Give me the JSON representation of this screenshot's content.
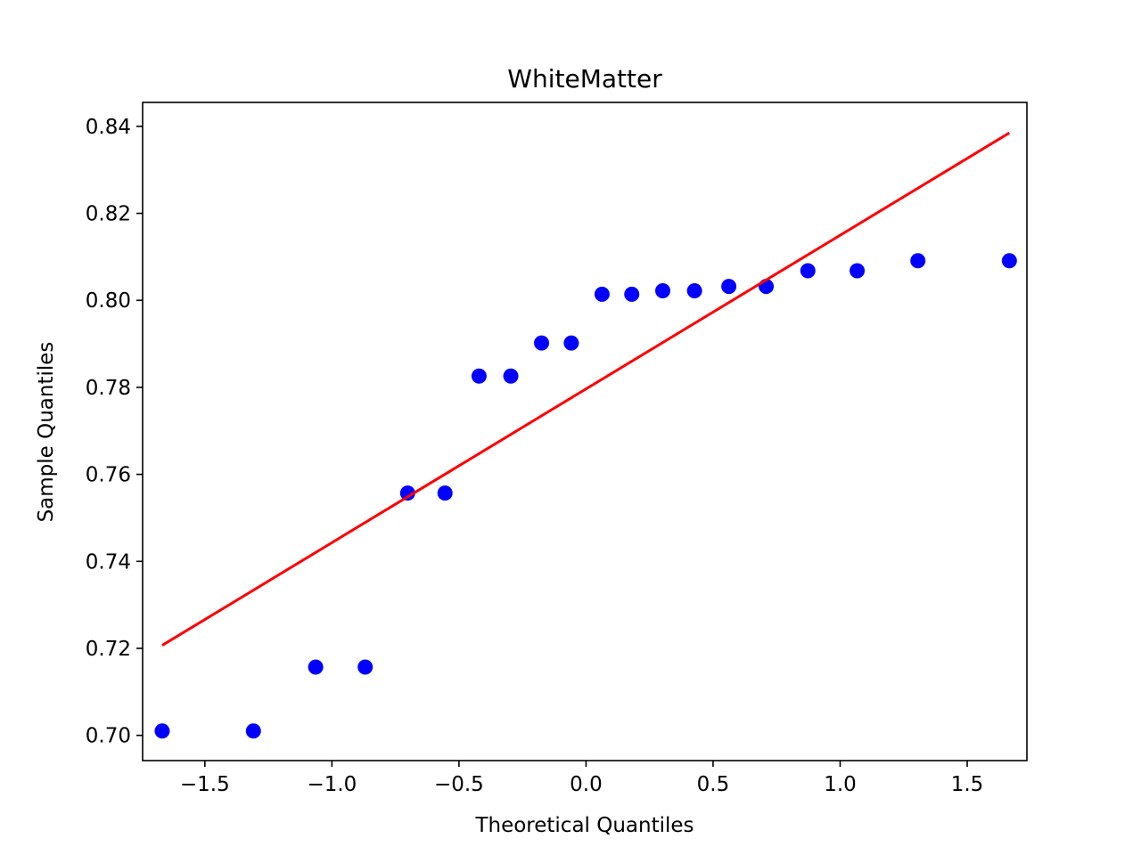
{
  "chart_data": {
    "type": "scatter",
    "title": "WhiteMatter",
    "xlabel": "Theoretical Quantiles",
    "ylabel": "Sample Quantiles",
    "xlim": [
      -1.745,
      1.735
    ],
    "ylim": [
      0.6942,
      0.8455
    ],
    "x_ticks": [
      -1.5,
      -1.0,
      -0.5,
      0.0,
      0.5,
      1.0,
      1.5
    ],
    "x_tick_labels": [
      "−1.5",
      "−1.0",
      "−0.5",
      "0.0",
      "0.5",
      "1.0",
      "1.5"
    ],
    "y_ticks": [
      0.7,
      0.72,
      0.74,
      0.76,
      0.78,
      0.8,
      0.82,
      0.84
    ],
    "y_tick_labels": [
      "0.70",
      "0.72",
      "0.74",
      "0.76",
      "0.78",
      "0.80",
      "0.82",
      "0.84"
    ],
    "grid": false,
    "points": {
      "color": "#0000ff",
      "x": [
        -1.668,
        -1.309,
        -1.064,
        -0.869,
        -0.702,
        -0.555,
        -0.421,
        -0.296,
        -0.175,
        -0.058,
        0.063,
        0.18,
        0.302,
        0.427,
        0.562,
        0.709,
        0.873,
        1.067,
        1.306,
        1.666
      ],
      "y": [
        0.701,
        0.701,
        0.7157,
        0.7157,
        0.7557,
        0.7557,
        0.7826,
        0.7826,
        0.7902,
        0.7902,
        0.8014,
        0.8014,
        0.8022,
        0.8022,
        0.8032,
        0.8032,
        0.8068,
        0.8068,
        0.8091,
        0.8091
      ]
    },
    "reference_line": {
      "color": "#ff0000",
      "x": [
        -1.668,
        1.666
      ],
      "y": [
        0.7207,
        0.8385
      ]
    }
  }
}
